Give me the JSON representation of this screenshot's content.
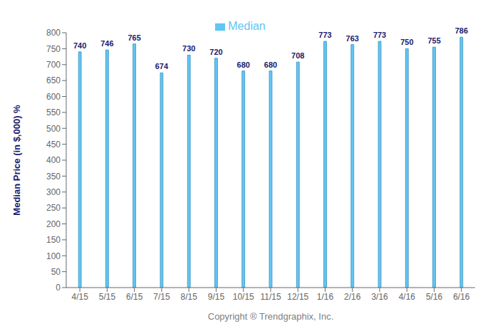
{
  "chart_data": {
    "type": "bar",
    "categories": [
      "4/15",
      "5/15",
      "6/15",
      "7/15",
      "8/15",
      "9/15",
      "10/15",
      "11/15",
      "12/15",
      "1/16",
      "2/16",
      "3/16",
      "4/16",
      "5/16",
      "6/16"
    ],
    "series": [
      {
        "name": "Median",
        "color": "#62C6F2",
        "values": [
          740,
          746,
          765,
          674,
          730,
          720,
          680,
          680,
          708,
          773,
          763,
          773,
          750,
          755,
          786
        ]
      }
    ],
    "ylabel": "Median Price (in $,000) %",
    "xlabel": "Copyright ® Trendgraphix, Inc.",
    "ylim": [
      0,
      800
    ],
    "yticks": [
      0,
      50,
      100,
      150,
      200,
      250,
      300,
      350,
      400,
      450,
      500,
      550,
      600,
      650,
      700,
      750,
      800
    ],
    "grid": false,
    "legend": "top",
    "data_labels": true
  }
}
